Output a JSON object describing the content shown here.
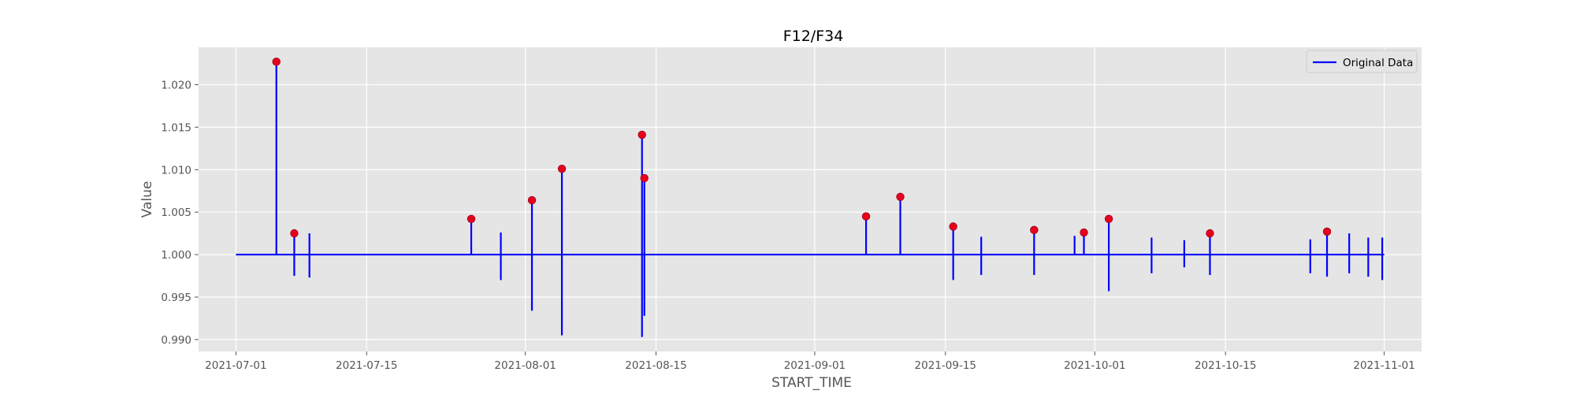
{
  "chart_data": {
    "type": "line",
    "title": "F12/F34",
    "xlabel": "START_TIME",
    "ylabel": "Value",
    "x_axis": {
      "type": "date",
      "range": [
        "2021-06-27",
        "2021-11-05"
      ],
      "ticks": [
        "2021-07-01",
        "2021-07-15",
        "2021-08-01",
        "2021-08-15",
        "2021-09-01",
        "2021-09-15",
        "2021-10-01",
        "2021-10-15",
        "2021-11-01"
      ]
    },
    "y_axis": {
      "range": [
        0.9886,
        1.0244
      ],
      "ticks": [
        "0.990",
        "0.995",
        "1.000",
        "1.005",
        "1.010",
        "1.015",
        "1.020"
      ],
      "tick_values": [
        0.99,
        0.995,
        1.0,
        1.005,
        1.01,
        1.015,
        1.02
      ]
    },
    "grid": true,
    "background": "#e5e5e5",
    "legend": {
      "placement": "top-right",
      "entries": [
        "Original Data"
      ]
    },
    "series": [
      {
        "name": "Original Data",
        "color": "#0000ff",
        "baseline": 1.0,
        "x_start": "2021-07-01",
        "x_end": "2021-11-01",
        "spikes": [
          {
            "x": "2021-07-05 08:00",
            "high": 1.0227,
            "low": 1.0
          },
          {
            "x": "2021-07-07 06:00",
            "high": 1.0025,
            "low": 0.9975
          },
          {
            "x": "2021-07-08 21:00",
            "high": 1.0025,
            "low": 0.9973
          },
          {
            "x": "2021-07-26 05:00",
            "high": 1.0042,
            "low": 1.0
          },
          {
            "x": "2021-07-29 09:00",
            "high": 1.0026,
            "low": 0.997
          },
          {
            "x": "2021-08-01 17:00",
            "high": 1.0064,
            "low": 0.9934
          },
          {
            "x": "2021-08-04 22:00",
            "high": 1.0101,
            "low": 0.9905
          },
          {
            "x": "2021-08-13 12:00",
            "high": 1.0141,
            "low": 0.9903
          },
          {
            "x": "2021-08-13 18:00",
            "high": 1.009,
            "low": 0.9928
          },
          {
            "x": "2021-09-06 12:00",
            "high": 1.0045,
            "low": 1.0
          },
          {
            "x": "2021-09-10 04:00",
            "high": 1.0068,
            "low": 1.0
          },
          {
            "x": "2021-09-15 20:00",
            "high": 1.0033,
            "low": 0.997
          },
          {
            "x": "2021-09-18 20:00",
            "high": 1.0021,
            "low": 0.9976
          },
          {
            "x": "2021-09-24 12:00",
            "high": 1.0029,
            "low": 0.9976
          },
          {
            "x": "2021-09-28 20:00",
            "high": 1.0022,
            "low": 1.0
          },
          {
            "x": "2021-09-29 20:00",
            "high": 1.0026,
            "low": 1.0
          },
          {
            "x": "2021-10-02 12:00",
            "high": 1.0042,
            "low": 0.9957
          },
          {
            "x": "2021-10-07 02:00",
            "high": 1.002,
            "low": 0.9978
          },
          {
            "x": "2021-10-10 14:00",
            "high": 1.0017,
            "low": 0.9985
          },
          {
            "x": "2021-10-13 08:00",
            "high": 1.0025,
            "low": 0.9976
          },
          {
            "x": "2021-10-24 02:00",
            "high": 1.0018,
            "low": 0.9978
          },
          {
            "x": "2021-10-25 21:00",
            "high": 1.0027,
            "low": 0.9974
          },
          {
            "x": "2021-10-28 06:00",
            "high": 1.0025,
            "low": 0.9978
          },
          {
            "x": "2021-10-30 07:00",
            "high": 1.002,
            "low": 0.9974
          },
          {
            "x": "2021-10-31 19:00",
            "high": 1.002,
            "low": 0.997
          }
        ]
      }
    ],
    "highlighted_points": {
      "color": "#e8001c",
      "points": [
        {
          "x": "2021-07-05 08:00",
          "y": 1.0227
        },
        {
          "x": "2021-07-07 06:00",
          "y": 1.0025
        },
        {
          "x": "2021-07-26 05:00",
          "y": 1.0042
        },
        {
          "x": "2021-08-01 17:00",
          "y": 1.0064
        },
        {
          "x": "2021-08-04 22:00",
          "y": 1.0101
        },
        {
          "x": "2021-08-13 12:00",
          "y": 1.0141
        },
        {
          "x": "2021-08-13 18:00",
          "y": 1.009
        },
        {
          "x": "2021-09-06 12:00",
          "y": 1.0045
        },
        {
          "x": "2021-09-10 04:00",
          "y": 1.0068
        },
        {
          "x": "2021-09-15 20:00",
          "y": 1.0033
        },
        {
          "x": "2021-09-24 12:00",
          "y": 1.0029
        },
        {
          "x": "2021-09-29 20:00",
          "y": 1.0026
        },
        {
          "x": "2021-10-02 12:00",
          "y": 1.0042
        },
        {
          "x": "2021-10-13 08:00",
          "y": 1.0025
        },
        {
          "x": "2021-10-25 21:00",
          "y": 1.0027
        }
      ]
    }
  }
}
